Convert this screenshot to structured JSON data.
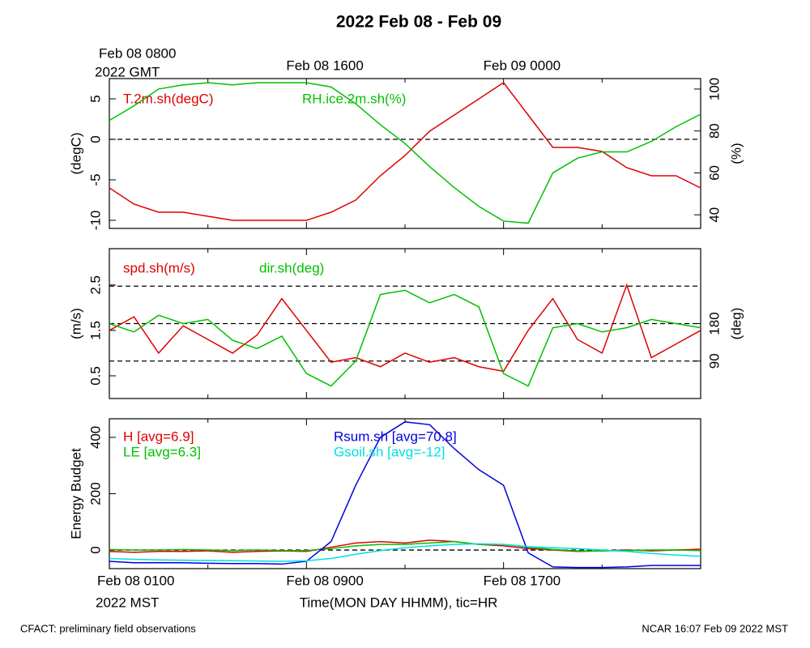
{
  "title": "2022 Feb 08 - Feb 09",
  "time": {
    "x": [
      0,
      1,
      2,
      3,
      4,
      5,
      6,
      7,
      8,
      9,
      10,
      11,
      12,
      13,
      14,
      15,
      16,
      17,
      18,
      19,
      20,
      21,
      22,
      23,
      24
    ],
    "xlim": [
      0,
      24
    ],
    "xticks": [
      {
        "value": 0,
        "label": "Feb 08 0100"
      },
      {
        "value": 8,
        "label": "Feb 08 0900"
      },
      {
        "value": 16,
        "label": "Feb 08 1700"
      }
    ],
    "minor_ticks": [
      4,
      12,
      20
    ],
    "bottom_note": "2022 MST",
    "xlabel": "Time(MON DAY HHMM), tic=HR",
    "top_ticks": [
      {
        "value": 0,
        "label": "Feb 08 0800"
      },
      {
        "value": 8,
        "label": "Feb 08 1600"
      },
      {
        "value": 16,
        "label": "Feb 09 0000"
      }
    ],
    "top_note": "2022 GMT"
  },
  "chart_data": [
    {
      "type": "line",
      "ylabel": "(degC)",
      "y2label": "(%)",
      "ylim": [
        -11,
        7.5
      ],
      "yticks": [
        -10,
        -5,
        0,
        5
      ],
      "y2lim": [
        33.5,
        105
      ],
      "y2ticks": [
        40,
        60,
        80,
        100
      ],
      "ref_lines": [
        0
      ],
      "series": [
        {
          "name": "T.2m.sh(degC)",
          "color": "#e00000",
          "values": [
            -6,
            -8,
            -9,
            -9,
            -9.5,
            -10,
            -10,
            -10,
            -10,
            -9,
            -7.5,
            -4.5,
            -2,
            1,
            3,
            5,
            7,
            3,
            -1,
            -1,
            -1.5,
            -3.5,
            -4.5,
            -4.5,
            -6
          ]
        },
        {
          "name": "RH.ice.2m.sh(%)",
          "color": "#00c000",
          "axis": "y2",
          "values": [
            85,
            92,
            100,
            102,
            103,
            102,
            103,
            103,
            103,
            101,
            93,
            83,
            74,
            63,
            53,
            44,
            37,
            36,
            60,
            67,
            70,
            70,
            75,
            82,
            88
          ]
        }
      ]
    },
    {
      "type": "line",
      "ylabel": "(m/s)",
      "y2label": "(deg)",
      "ylim": [
        0,
        3.3
      ],
      "yticks": [
        0.5,
        1.5,
        2.5
      ],
      "y2lim": [
        0,
        360
      ],
      "y2ticks": [
        90,
        180
      ],
      "y2_ref_lines": [
        90,
        180,
        270
      ],
      "series": [
        {
          "name": "spd.sh(m/s)",
          "color": "#e00000",
          "values": [
            1.5,
            1.8,
            1.0,
            1.6,
            1.3,
            1.0,
            1.4,
            2.2,
            1.5,
            0.8,
            0.9,
            0.7,
            1.0,
            0.8,
            0.9,
            0.7,
            0.6,
            1.5,
            2.2,
            1.3,
            1.0,
            2.5,
            0.9,
            1.2,
            1.5
          ]
        },
        {
          "name": "dir.sh(deg)",
          "color": "#00c000",
          "axis": "y2",
          "values": [
            180,
            160,
            200,
            180,
            190,
            140,
            120,
            150,
            60,
            30,
            90,
            250,
            260,
            230,
            250,
            220,
            60,
            30,
            170,
            180,
            160,
            170,
            190,
            180,
            170
          ]
        }
      ]
    },
    {
      "type": "line",
      "ylabel": "Energy Budget",
      "ylim": [
        -66,
        466
      ],
      "yticks": [
        0,
        200,
        400
      ],
      "ref_lines": [
        0
      ],
      "series": [
        {
          "name": "H [avg=6.9]",
          "color": "#e00000",
          "values": [
            -5,
            -8,
            -5,
            -5,
            -3,
            -8,
            -5,
            -3,
            -5,
            10,
            25,
            30,
            25,
            35,
            30,
            20,
            15,
            5,
            0,
            -5,
            -3,
            0,
            -3,
            0,
            3
          ]
        },
        {
          "name": "LE [avg=6.3]",
          "color": "#00c000",
          "values": [
            2,
            0,
            0,
            2,
            0,
            -2,
            0,
            -2,
            -2,
            5,
            15,
            20,
            20,
            25,
            30,
            20,
            20,
            10,
            2,
            -3,
            -3,
            -2,
            0,
            0,
            -2
          ]
        },
        {
          "name": "Rsum.sh [avg=70.8]",
          "color": "#0000e0",
          "values": [
            -40,
            -45,
            -45,
            -45,
            -47,
            -48,
            -48,
            -50,
            -40,
            30,
            230,
            400,
            455,
            445,
            360,
            285,
            230,
            -10,
            -60,
            -62,
            -62,
            -60,
            -55,
            -55,
            -55
          ]
        },
        {
          "name": "Gsoil.sh [avg=-12]",
          "color": "#00e0e0",
          "values": [
            -30,
            -33,
            -35,
            -36,
            -37,
            -38,
            -39,
            -40,
            -38,
            -30,
            -15,
            -2,
            8,
            15,
            20,
            22,
            20,
            12,
            8,
            5,
            0,
            -5,
            -12,
            -18,
            -22
          ]
        }
      ]
    }
  ],
  "footer_left": "CFACT: preliminary field observations",
  "footer_right": "NCAR 16:07 Feb 09 2022 MST"
}
